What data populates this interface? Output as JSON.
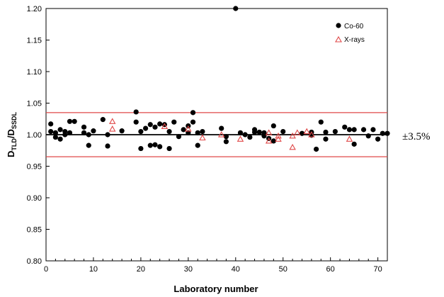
{
  "chart_data": {
    "type": "scatter",
    "xlabel": "Laboratory number",
    "ylabel": {
      "main": "D",
      "sub1": "TLD",
      "mid": "/D",
      "sub2": "SSDL"
    },
    "xlim": [
      0,
      72
    ],
    "ylim": [
      0.8,
      1.2
    ],
    "x_ticks": [
      0,
      10,
      20,
      30,
      40,
      50,
      60,
      70
    ],
    "y_ticks": [
      0.8,
      0.85,
      0.9,
      0.95,
      1.0,
      1.05,
      1.1,
      1.15,
      1.2
    ],
    "y_tick_labels": [
      "0.80",
      "0.85",
      "0.90",
      "0.95",
      "1.00",
      "1.05",
      "1.10",
      "1.15",
      "1.20"
    ],
    "legend_position": "top-right",
    "reference_line": 1.0,
    "tolerance_band": {
      "upper": 1.035,
      "lower": 0.965,
      "label": "±3.5%",
      "color": "#e04848"
    },
    "series": [
      {
        "name": "Co-60",
        "marker": "circle",
        "color": "#000000",
        "points": [
          [
            1,
            1.017
          ],
          [
            1,
            1.005
          ],
          [
            2,
            1.003
          ],
          [
            2,
            0.996
          ],
          [
            3,
            1.008
          ],
          [
            3,
            0.993
          ],
          [
            4,
            1.0
          ],
          [
            4,
            1.005
          ],
          [
            5,
            1.021
          ],
          [
            5,
            1.003
          ],
          [
            6,
            1.021
          ],
          [
            8,
            1.012
          ],
          [
            8,
            1.003
          ],
          [
            9,
            1.0
          ],
          [
            9,
            0.983
          ],
          [
            10,
            1.006
          ],
          [
            12,
            1.024
          ],
          [
            13,
            0.982
          ],
          [
            13,
            1.0
          ],
          [
            16,
            1.006
          ],
          [
            19,
            1.036
          ],
          [
            19,
            1.02
          ],
          [
            20,
            0.978
          ],
          [
            20,
            1.005
          ],
          [
            21,
            1.01
          ],
          [
            22,
            1.016
          ],
          [
            22,
            0.983
          ],
          [
            23,
            0.984
          ],
          [
            23,
            1.012
          ],
          [
            24,
            1.017
          ],
          [
            24,
            0.981
          ],
          [
            25,
            1.016
          ],
          [
            26,
            1.005
          ],
          [
            26,
            0.978
          ],
          [
            27,
            1.02
          ],
          [
            28,
            0.997
          ],
          [
            29,
            1.008
          ],
          [
            30,
            1.014
          ],
          [
            30,
            1.003
          ],
          [
            31,
            1.035
          ],
          [
            31,
            1.02
          ],
          [
            32,
            0.983
          ],
          [
            32,
            1.003
          ],
          [
            33,
            1.005
          ],
          [
            37,
            1.01
          ],
          [
            38,
            0.997
          ],
          [
            38,
            0.989
          ],
          [
            40,
            1.2
          ],
          [
            41,
            1.003
          ],
          [
            42,
            1.0
          ],
          [
            43,
            0.996
          ],
          [
            44,
            1.008
          ],
          [
            44,
            1.004
          ],
          [
            45,
            1.004
          ],
          [
            46,
            1.003
          ],
          [
            46,
            0.998
          ],
          [
            47,
            0.994
          ],
          [
            48,
            1.014
          ],
          [
            48,
            0.99
          ],
          [
            50,
            1.005
          ],
          [
            54,
            1.002
          ],
          [
            56,
            0.999
          ],
          [
            56,
            1.004
          ],
          [
            57,
            0.977
          ],
          [
            58,
            1.02
          ],
          [
            59,
            0.993
          ],
          [
            59,
            1.004
          ],
          [
            61,
            1.005
          ],
          [
            63,
            1.012
          ],
          [
            64,
            1.008
          ],
          [
            65,
            0.985
          ],
          [
            65,
            1.008
          ],
          [
            67,
            1.008
          ],
          [
            68,
            0.998
          ],
          [
            69,
            1.008
          ],
          [
            70,
            0.993
          ],
          [
            71,
            1.002
          ],
          [
            72,
            1.002
          ]
        ]
      },
      {
        "name": "X-rays",
        "marker": "triangle",
        "color": "#e04848",
        "points": [
          [
            14,
            1.021
          ],
          [
            14,
            1.009
          ],
          [
            25,
            1.013
          ],
          [
            30,
            1.009
          ],
          [
            33,
            0.995
          ],
          [
            37,
            1.0
          ],
          [
            41,
            0.993
          ],
          [
            47,
            1.003
          ],
          [
            47,
            0.99
          ],
          [
            49,
            0.993
          ],
          [
            49,
            0.998
          ],
          [
            52,
            0.98
          ],
          [
            52,
            0.998
          ],
          [
            53,
            1.003
          ],
          [
            55,
            1.005
          ],
          [
            56,
            1.0
          ],
          [
            64,
            0.993
          ]
        ]
      }
    ]
  }
}
